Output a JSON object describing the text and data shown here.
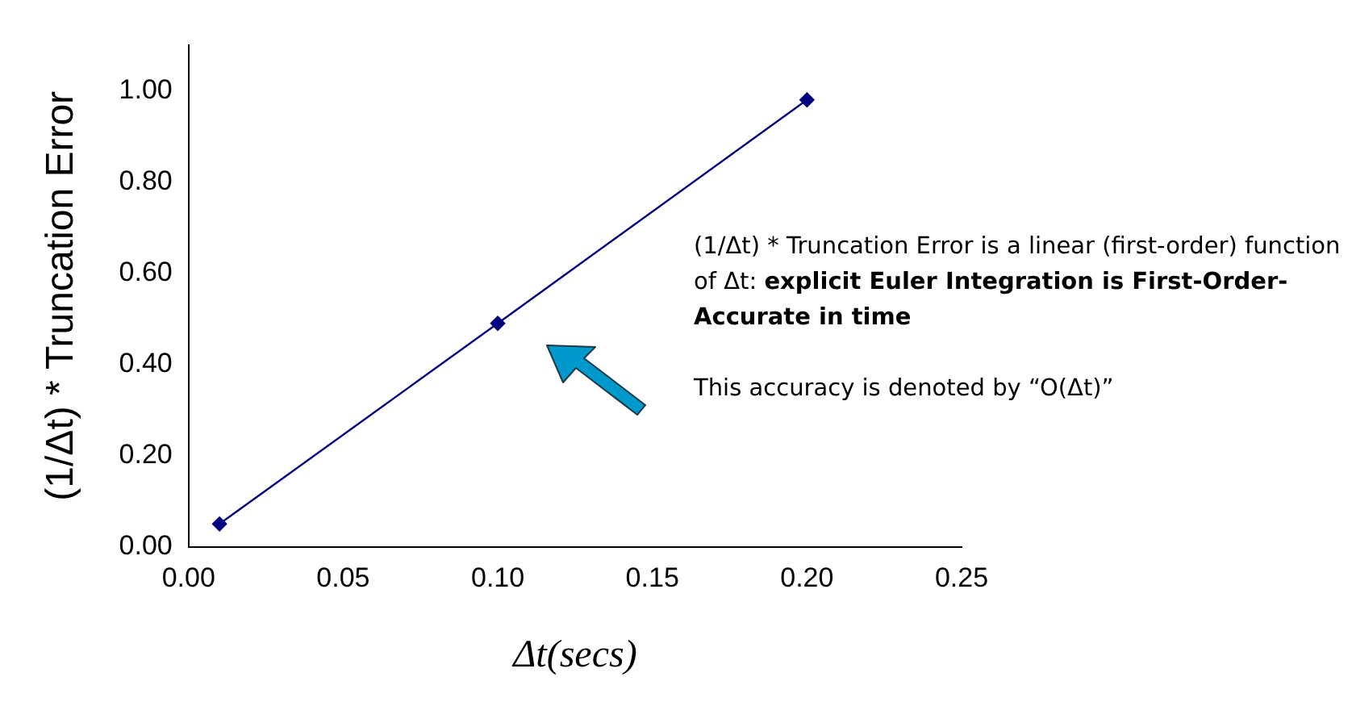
{
  "chart_data": {
    "type": "line",
    "xlabel": "Δt(secs)",
    "ylabel": "(1/Δt) * Truncation Error",
    "x": [
      0.01,
      0.1,
      0.2
    ],
    "series": [
      {
        "color": "#000080",
        "values": [
          0.05,
          0.49,
          0.98
        ]
      }
    ],
    "xlim": [
      0,
      0.25
    ],
    "xticks": [
      {
        "value": 0,
        "label": "0.00"
      },
      {
        "value": 0.05,
        "label": "0.05"
      },
      {
        "value": 0.1,
        "label": "0.10"
      },
      {
        "value": 0.15,
        "label": "0.15"
      },
      {
        "value": 0.2,
        "label": "0.20"
      },
      {
        "value": 0.25,
        "label": "0.25"
      }
    ],
    "ylim": [
      0,
      1.1
    ],
    "yticks": [
      {
        "value": 0,
        "label": "0.00"
      },
      {
        "value": 0.2,
        "label": "0.20"
      },
      {
        "value": 0.4,
        "label": "0.40"
      },
      {
        "value": 0.6,
        "label": "0.60"
      },
      {
        "value": 0.8,
        "label": "0.80"
      },
      {
        "value": 1,
        "label": "1.00"
      }
    ],
    "marker": "diamond",
    "line_style": "solid",
    "grid": false,
    "legend": false,
    "annotations": [
      "(1/Δt) * Truncation Error is a linear (first-order) function of Δt:",
      "explicit Euler Integration is First-Order-Accurate in time",
      "This accuracy is denoted by “O(Δt)”"
    ]
  }
}
